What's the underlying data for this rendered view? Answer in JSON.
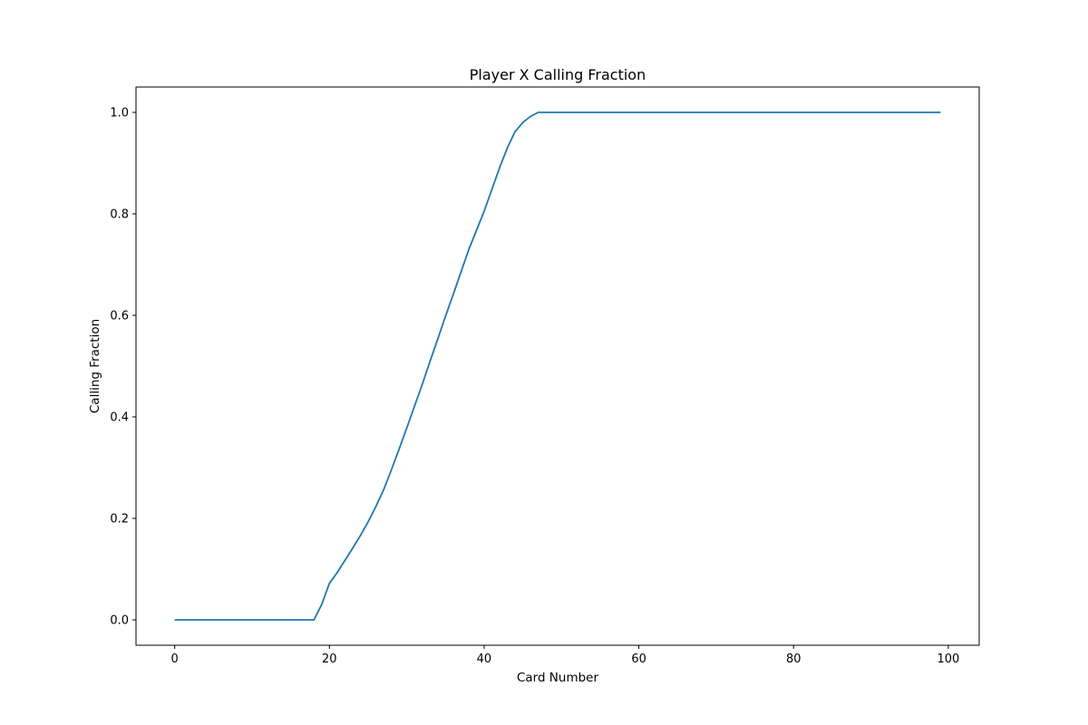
{
  "chart_data": {
    "type": "line",
    "title": "Player X Calling Fraction",
    "xlabel": "Card Number",
    "ylabel": "Calling Fraction",
    "xlim": [
      -5,
      104
    ],
    "ylim": [
      -0.05,
      1.05
    ],
    "xticks": [
      0,
      20,
      40,
      60,
      80,
      100
    ],
    "yticks": [
      0.0,
      0.2,
      0.4,
      0.6,
      0.8,
      1.0
    ],
    "xtick_labels": [
      "0",
      "20",
      "40",
      "60",
      "80",
      "100"
    ],
    "ytick_labels": [
      "0.0",
      "0.2",
      "0.4",
      "0.6",
      "0.8",
      "1.0"
    ],
    "grid": false,
    "line_color": "#1f77b4",
    "series": [
      {
        "x": [
          0,
          18,
          19,
          20,
          21,
          22,
          23,
          24,
          25,
          26,
          27,
          28,
          29,
          30,
          31,
          32,
          33,
          34,
          35,
          36,
          37,
          38,
          39,
          40,
          41,
          42,
          43,
          44,
          45,
          46,
          47,
          48,
          99
        ],
        "y": [
          0.0,
          0.0,
          0.03,
          0.072,
          0.093,
          0.117,
          0.141,
          0.166,
          0.193,
          0.223,
          0.256,
          0.295,
          0.336,
          0.378,
          0.421,
          0.464,
          0.509,
          0.553,
          0.598,
          0.641,
          0.685,
          0.729,
          0.767,
          0.805,
          0.848,
          0.891,
          0.93,
          0.962,
          0.98,
          0.992,
          1.0,
          1.0,
          1.0
        ]
      }
    ]
  }
}
